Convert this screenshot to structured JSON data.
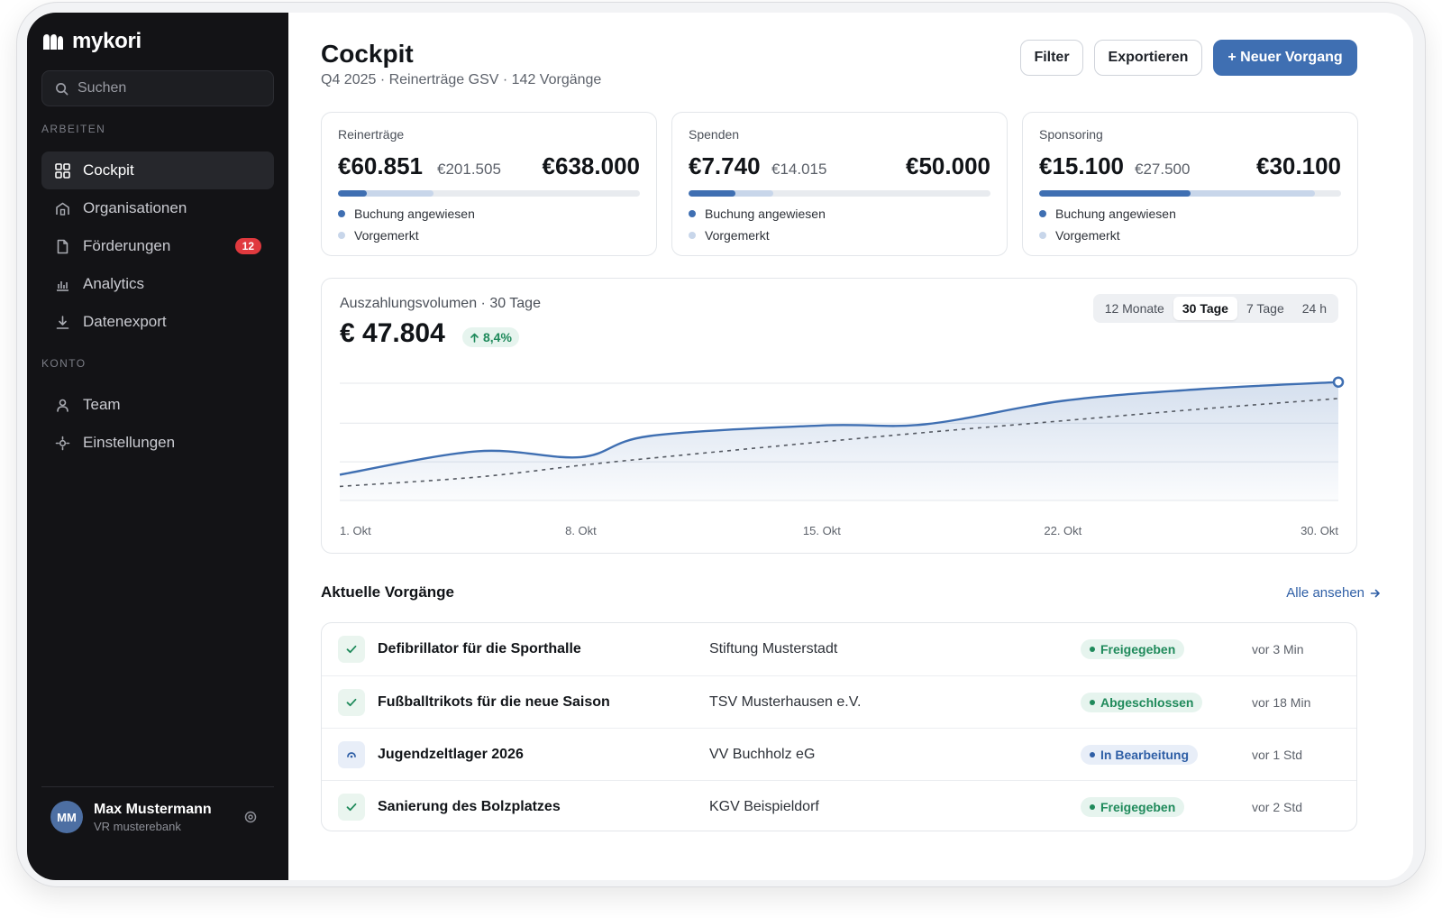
{
  "app": {
    "name": "mykori"
  },
  "sidebar": {
    "search_placeholder": "Suchen",
    "sections": [
      {
        "label": "ARBEITEN"
      },
      {
        "label": "KONTO"
      }
    ],
    "items": [
      {
        "label": "Cockpit",
        "icon": "grid-icon",
        "active": true
      },
      {
        "label": "Organisationen",
        "icon": "building-icon"
      },
      {
        "label": "Förderungen",
        "icon": "document-icon",
        "badge": "12"
      },
      {
        "label": "Analytics",
        "icon": "bar-chart-icon"
      },
      {
        "label": "Datenexport",
        "icon": "download-icon"
      },
      {
        "label": "Team",
        "icon": "user-icon"
      },
      {
        "label": "Einstellungen",
        "icon": "settings-icon"
      }
    ],
    "user": {
      "initials": "MM",
      "name": "Max Mustermann",
      "org": "VR musterebank"
    }
  },
  "header": {
    "title": "Cockpit",
    "subtitle": "Q4 2025 · Reinerträge GSV · 142 Vorgänge",
    "buttons": {
      "filter": "Filter",
      "export": "Exportieren",
      "new": "+ Neuer Vorgang"
    }
  },
  "kpis": [
    {
      "label": "Reinerträge",
      "value": "€60.851",
      "secondary": "€201.505",
      "target": "€638.000",
      "booked_fraction": 0.095,
      "reserved_fraction": 0.316
    },
    {
      "label": "Spenden",
      "value": "€7.740",
      "secondary": "€14.015",
      "target": "€50.000",
      "booked_fraction": 0.155,
      "reserved_fraction": 0.28
    },
    {
      "label": "Sponsoring",
      "value": "€15.100",
      "secondary": "€27.500",
      "target": "€30.100",
      "booked_fraction": 0.502,
      "reserved_fraction": 0.914
    }
  ],
  "kpi_legend": {
    "booked": "Buchung angewiesen",
    "reserved": "Vorgemerkt"
  },
  "chart": {
    "label": "Auszahlungsvolumen · 30 Tage",
    "value": "€ 47.804",
    "delta": "8,4%",
    "ranges": [
      "12 Monate",
      "30 Tage",
      "7 Tage",
      "24 h"
    ],
    "active_range": "30 Tage"
  },
  "chart_data": {
    "type": "area",
    "x": [
      1,
      5,
      8,
      10,
      15,
      18,
      22,
      26,
      30
    ],
    "x_tick_labels": [
      "1. Okt",
      "8. Okt",
      "15. Okt",
      "22. Okt",
      "30. Okt"
    ],
    "x_ticks": [
      1,
      8,
      15,
      22,
      30
    ],
    "series": [
      {
        "style": "solid-area",
        "color": "#3f6fb2",
        "values": [
          0.22,
          0.42,
          0.37,
          0.55,
          0.64,
          0.65,
          0.85,
          0.95,
          1.01
        ]
      },
      {
        "style": "dashed",
        "color": "#555a63",
        "values": [
          0.12,
          0.2,
          0.3,
          0.36,
          0.5,
          0.58,
          0.68,
          0.78,
          0.87
        ]
      }
    ],
    "ylim": [
      0,
      1.0
    ],
    "grid": true
  },
  "recent": {
    "title": "Aktuelle Vorgänge",
    "see_all": "Alle ansehen",
    "rows": [
      {
        "title": "Defibrillator für die Sporthalle",
        "org": "Stiftung Musterstadt",
        "status": "Freigegeben",
        "tone": "green",
        "icon": "check-icon",
        "time": "vor 3 Min"
      },
      {
        "title": "Fußballtrikots für die neue Saison",
        "org": "TSV Musterhausen e.V.",
        "status": "Abgeschlossen",
        "tone": "green",
        "icon": "check-icon",
        "time": "vor 18 Min"
      },
      {
        "title": "Jugendzeltlager 2026",
        "org": "VV Buchholz eG",
        "status": "In Bearbeitung",
        "tone": "blue",
        "icon": "progress-icon",
        "time": "vor 1 Std"
      },
      {
        "title": "Sanierung des Bolzplatzes",
        "org": "KGV Beispieldorf",
        "status": "Freigegeben",
        "tone": "green",
        "icon": "check-icon",
        "time": "vor 2 Std"
      }
    ]
  },
  "colors": {
    "accent": "#3f6fb2",
    "sidebar_bg": "#131316",
    "success": "#1f8a5b",
    "danger": "#e0393e"
  }
}
